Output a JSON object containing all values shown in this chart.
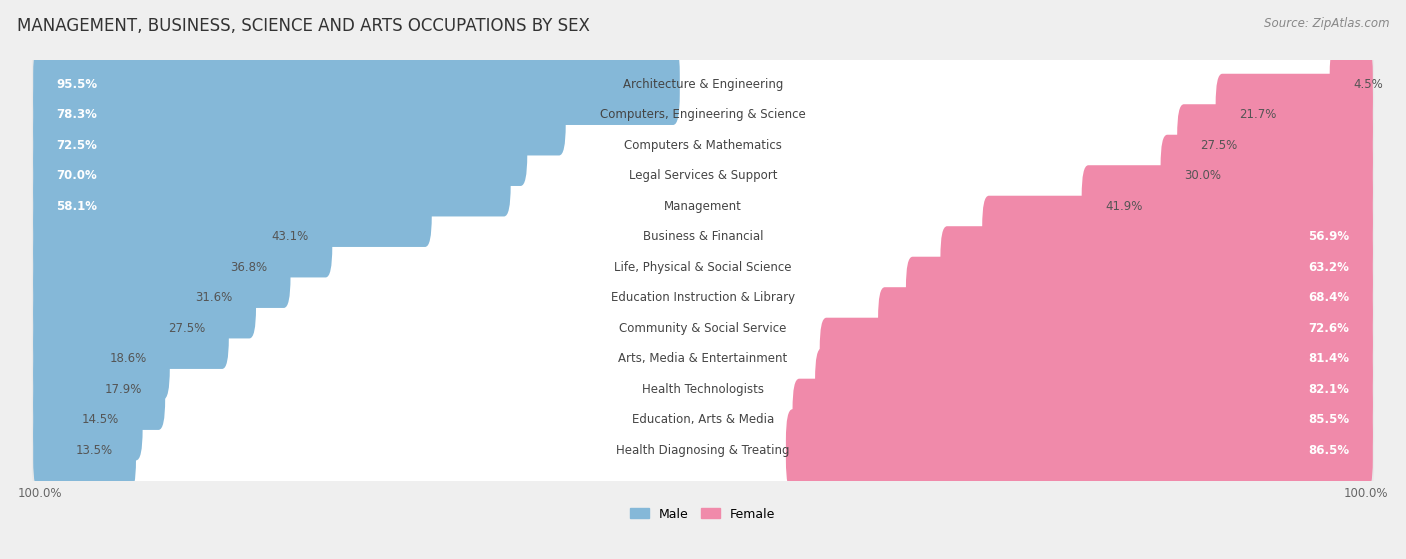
{
  "title": "MANAGEMENT, BUSINESS, SCIENCE AND ARTS OCCUPATIONS BY SEX",
  "source": "Source: ZipAtlas.com",
  "categories": [
    "Architecture & Engineering",
    "Computers, Engineering & Science",
    "Computers & Mathematics",
    "Legal Services & Support",
    "Management",
    "Business & Financial",
    "Life, Physical & Social Science",
    "Education Instruction & Library",
    "Community & Social Service",
    "Arts, Media & Entertainment",
    "Health Technologists",
    "Education, Arts & Media",
    "Health Diagnosing & Treating"
  ],
  "male": [
    95.5,
    78.3,
    72.5,
    70.0,
    58.1,
    43.1,
    36.8,
    31.6,
    27.5,
    18.6,
    17.9,
    14.5,
    13.5
  ],
  "female": [
    4.5,
    21.7,
    27.5,
    30.0,
    41.9,
    56.9,
    63.2,
    68.4,
    72.6,
    81.4,
    82.1,
    85.5,
    86.5
  ],
  "male_color": "#85b8d8",
  "female_color": "#f08aaa",
  "bg_color": "#efefef",
  "bar_bg_color": "#ffffff",
  "row_bg_color": "#e8e8e8",
  "title_fontsize": 12,
  "label_fontsize": 8.5,
  "tick_fontsize": 8.5,
  "source_fontsize": 8.5,
  "male_label_threshold": 55,
  "female_label_threshold": 50
}
